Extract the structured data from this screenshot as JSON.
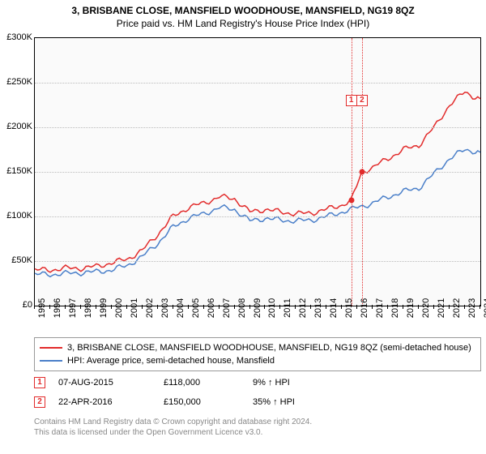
{
  "title": "3, BRISBANE CLOSE, MANSFIELD WOODHOUSE, MANSFIELD, NG19 8QZ",
  "subtitle": "Price paid vs. HM Land Registry's House Price Index (HPI)",
  "chart": {
    "type": "line",
    "background_color": "#fafafa",
    "grid_color": "#bbbbbb",
    "axis_color": "#000000",
    "x_start_year": 1995,
    "x_end_year": 2024,
    "x_ticks": [
      1995,
      1996,
      1997,
      1998,
      1999,
      2000,
      2001,
      2002,
      2003,
      2004,
      2005,
      2006,
      2007,
      2008,
      2009,
      2010,
      2011,
      2012,
      2013,
      2014,
      2015,
      2016,
      2017,
      2018,
      2019,
      2020,
      2021,
      2022,
      2023,
      2024
    ],
    "ylim": [
      0,
      300000
    ],
    "y_ticks": [
      {
        "v": 0,
        "label": "£0"
      },
      {
        "v": 50000,
        "label": "£50K"
      },
      {
        "v": 100000,
        "label": "£100K"
      },
      {
        "v": 150000,
        "label": "£150K"
      },
      {
        "v": 200000,
        "label": "£200K"
      },
      {
        "v": 250000,
        "label": "£250K"
      },
      {
        "v": 300000,
        "label": "£300K"
      }
    ],
    "series": [
      {
        "name": "3, BRISBANE CLOSE, MANSFIELD WOODHOUSE, MANSFIELD, NG19 8QZ (semi-detached house)",
        "color": "#e22b2b",
        "line_width": 1.5,
        "points": [
          [
            1995.0,
            40000
          ],
          [
            1996.0,
            40000
          ],
          [
            1997.0,
            42000
          ],
          [
            1998.0,
            42000
          ],
          [
            1999.0,
            44000
          ],
          [
            2000.0,
            48000
          ],
          [
            2001.0,
            52000
          ],
          [
            2002.0,
            62000
          ],
          [
            2003.0,
            80000
          ],
          [
            2004.0,
            100000
          ],
          [
            2005.0,
            110000
          ],
          [
            2006.0,
            115000
          ],
          [
            2007.0,
            122000
          ],
          [
            2008.0,
            120000
          ],
          [
            2009.0,
            105000
          ],
          [
            2010.0,
            108000
          ],
          [
            2011.0,
            105000
          ],
          [
            2012.0,
            103000
          ],
          [
            2013.0,
            104000
          ],
          [
            2014.0,
            108000
          ],
          [
            2015.0,
            113000
          ],
          [
            2015.6,
            118000
          ],
          [
            2016.3,
            150000
          ],
          [
            2017.0,
            155000
          ],
          [
            2018.0,
            165000
          ],
          [
            2019.0,
            175000
          ],
          [
            2020.0,
            180000
          ],
          [
            2021.0,
            200000
          ],
          [
            2022.0,
            225000
          ],
          [
            2023.0,
            240000
          ],
          [
            2023.5,
            235000
          ],
          [
            2024.0,
            232000
          ]
        ]
      },
      {
        "name": "HPI: Average price, semi-detached house, Mansfield",
        "color": "#4a7fc9",
        "line_width": 1.5,
        "points": [
          [
            1995.0,
            35000
          ],
          [
            1996.0,
            35000
          ],
          [
            1997.0,
            36000
          ],
          [
            1998.0,
            37000
          ],
          [
            1999.0,
            38000
          ],
          [
            2000.0,
            40000
          ],
          [
            2001.0,
            45000
          ],
          [
            2002.0,
            55000
          ],
          [
            2003.0,
            70000
          ],
          [
            2004.0,
            88000
          ],
          [
            2005.0,
            98000
          ],
          [
            2006.0,
            103000
          ],
          [
            2007.0,
            110000
          ],
          [
            2008.0,
            108000
          ],
          [
            2009.0,
            95000
          ],
          [
            2010.0,
            98000
          ],
          [
            2011.0,
            96000
          ],
          [
            2012.0,
            95000
          ],
          [
            2013.0,
            96000
          ],
          [
            2014.0,
            100000
          ],
          [
            2015.0,
            105000
          ],
          [
            2016.0,
            110000
          ],
          [
            2017.0,
            115000
          ],
          [
            2018.0,
            122000
          ],
          [
            2019.0,
            128000
          ],
          [
            2020.0,
            132000
          ],
          [
            2021.0,
            148000
          ],
          [
            2022.0,
            165000
          ],
          [
            2023.0,
            175000
          ],
          [
            2024.0,
            172000
          ]
        ]
      }
    ],
    "sale_markers": [
      {
        "n": "1",
        "x": 2015.6,
        "y": 118000,
        "color": "#e22b2b"
      },
      {
        "n": "2",
        "x": 2016.3,
        "y": 150000,
        "color": "#e22b2b"
      }
    ]
  },
  "legend": {
    "border_color": "#999999",
    "items": [
      {
        "color": "#e22b2b",
        "label": "3, BRISBANE CLOSE, MANSFIELD WOODHOUSE, MANSFIELD, NG19 8QZ (semi-detached house)"
      },
      {
        "color": "#4a7fc9",
        "label": "HPI: Average price, semi-detached house, Mansfield"
      }
    ]
  },
  "sales": [
    {
      "n": "1",
      "color": "#e22b2b",
      "date": "07-AUG-2015",
      "price": "£118,000",
      "delta": "9% ↑ HPI"
    },
    {
      "n": "2",
      "color": "#e22b2b",
      "date": "22-APR-2016",
      "price": "£150,000",
      "delta": "35% ↑ HPI"
    }
  ],
  "footer": {
    "line1": "Contains HM Land Registry data © Crown copyright and database right 2024.",
    "line2": "This data is licensed under the Open Government Licence v3.0."
  }
}
